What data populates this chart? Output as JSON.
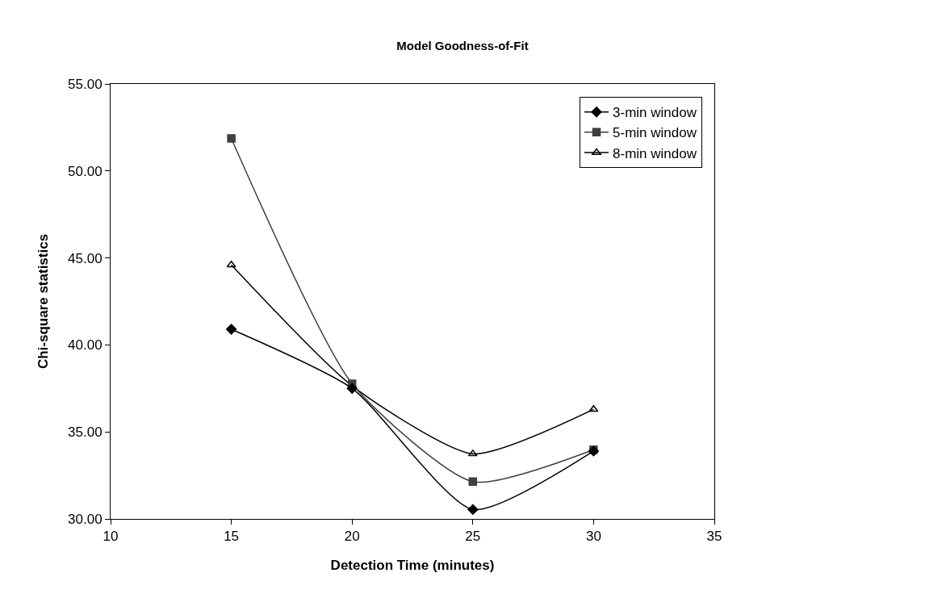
{
  "chart_data": {
    "type": "line",
    "title": "Model Goodness-of-Fit",
    "xlabel": "Detection Time (minutes)",
    "ylabel": "Chi-square statistics",
    "x": [
      15,
      20,
      25,
      30
    ],
    "series": [
      {
        "name": "3-min window",
        "color": "#000000",
        "marker": "diamond",
        "values": [
          40.9,
          37.5,
          30.54,
          33.9
        ]
      },
      {
        "name": "5-min window",
        "color": "#404040",
        "marker": "square",
        "values": [
          51.87,
          37.77,
          32.14,
          33.98
        ]
      },
      {
        "name": "8-min window",
        "color": "#000000",
        "marker": "triangle",
        "values": [
          44.6,
          37.65,
          33.74,
          36.3
        ]
      }
    ],
    "xlim": [
      10,
      35
    ],
    "xticks": [
      10,
      15,
      20,
      25,
      30,
      35
    ],
    "ylim": [
      30,
      55
    ],
    "yticks": [
      {
        "value": 30,
        "label": "30.00"
      },
      {
        "value": 35,
        "label": "35.00"
      },
      {
        "value": 40,
        "label": "40.00"
      },
      {
        "value": 45,
        "label": "45.00"
      },
      {
        "value": 50,
        "label": "50.00"
      },
      {
        "value": 55,
        "label": "55.00"
      }
    ],
    "grid": false,
    "legend": "top right",
    "line_style": "solid"
  }
}
